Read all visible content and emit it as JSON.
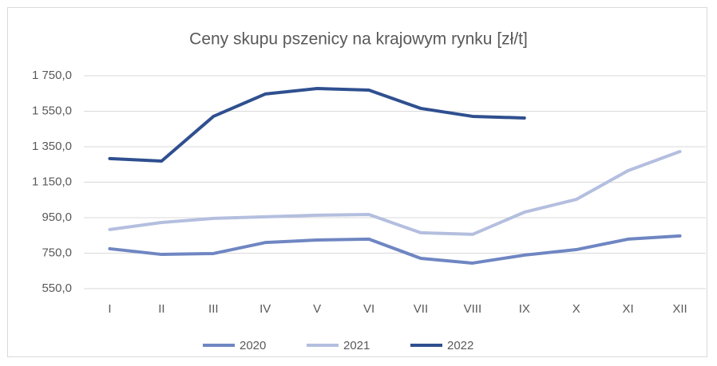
{
  "chart_data": {
    "type": "line",
    "title": "Ceny skupu pszenicy na krajowym rynku [zł/t]",
    "categories": [
      "I",
      "II",
      "III",
      "IV",
      "V",
      "VI",
      "VII",
      "VIII",
      "IX",
      "X",
      "XI",
      "XII"
    ],
    "series": [
      {
        "name": "2020",
        "color": "#6f86c2",
        "values": [
          775,
          743,
          748,
          810,
          824,
          829,
          721,
          694,
          739,
          770,
          829,
          847
        ]
      },
      {
        "name": "2021",
        "color": "#b4bfdf",
        "values": [
          883,
          923,
          946,
          955,
          964,
          968,
          865,
          856,
          981,
          1053,
          1215,
          1323
        ]
      },
      {
        "name": "2022",
        "color": "#2f4f8f",
        "values": [
          1283,
          1269,
          1521,
          1647,
          1678,
          1669,
          1566,
          1521,
          1512,
          null,
          null,
          null
        ]
      }
    ],
    "ylim": [
      550,
      1750
    ],
    "yticks": [
      {
        "value": 550,
        "label": "550,0"
      },
      {
        "value": 750,
        "label": "750,0"
      },
      {
        "value": 950,
        "label": "950,0"
      },
      {
        "value": 1150,
        "label": "1 150,0"
      },
      {
        "value": 1350,
        "label": "1 350,0"
      },
      {
        "value": 1550,
        "label": "1 550,0"
      },
      {
        "value": 1750,
        "label": "1 750,0"
      }
    ],
    "grid": true,
    "legend": "bottom"
  }
}
